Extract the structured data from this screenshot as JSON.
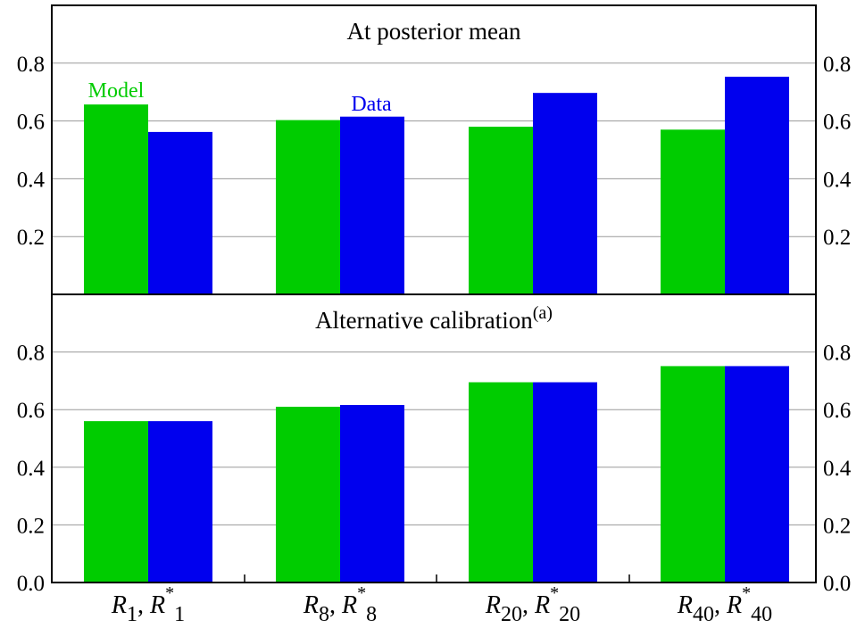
{
  "chart_data": [
    {
      "type": "bar",
      "title": "At posterior mean",
      "title_superscript": "",
      "categories": [
        {
          "main": "R",
          "sub": "1",
          "star_main": "R",
          "star_sub": "1"
        },
        {
          "main": "R",
          "sub": "8",
          "star_main": "R",
          "star_sub": "8"
        },
        {
          "main": "R",
          "sub": "20",
          "star_main": "R",
          "star_sub": "20"
        },
        {
          "main": "R",
          "sub": "40",
          "star_main": "R",
          "star_sub": "40"
        }
      ],
      "series": [
        {
          "name": "Model",
          "color": "#00cc00",
          "values": [
            0.657,
            0.603,
            0.58,
            0.57
          ]
        },
        {
          "name": "Data",
          "color": "#0000ee",
          "values": [
            0.562,
            0.615,
            0.697,
            0.753
          ]
        }
      ],
      "ylim": [
        0,
        1.0
      ],
      "yticks": [
        0.2,
        0.4,
        0.6,
        0.8
      ],
      "ytick_labels": [
        "0.2",
        "0.4",
        "0.6",
        "0.8"
      ],
      "grid": true,
      "legend": "inline labels above bars"
    },
    {
      "type": "bar",
      "title": "Alternative calibration",
      "title_superscript": "(a)",
      "categories": [
        {
          "main": "R",
          "sub": "1",
          "star_main": "R",
          "star_sub": "1"
        },
        {
          "main": "R",
          "sub": "8",
          "star_main": "R",
          "star_sub": "8"
        },
        {
          "main": "R",
          "sub": "20",
          "star_main": "R",
          "star_sub": "20"
        },
        {
          "main": "R",
          "sub": "40",
          "star_main": "R",
          "star_sub": "40"
        }
      ],
      "series": [
        {
          "name": "Model",
          "color": "#00cc00",
          "values": [
            0.56,
            0.61,
            0.695,
            0.751
          ]
        },
        {
          "name": "Data",
          "color": "#0000ee",
          "values": [
            0.56,
            0.616,
            0.695,
            0.751
          ]
        }
      ],
      "ylim": [
        0,
        1.0
      ],
      "yticks": [
        0.0,
        0.2,
        0.4,
        0.6,
        0.8
      ],
      "ytick_labels": [
        "0.0",
        "0.2",
        "0.4",
        "0.6",
        "0.8"
      ],
      "grid": true,
      "legend": "none"
    }
  ],
  "legend_labels": {
    "model": "Model",
    "data": "Data"
  },
  "colors": {
    "model": "#00cc00",
    "data": "#0000ee",
    "grid": "#9a9a9a",
    "axis": "#000000"
  }
}
